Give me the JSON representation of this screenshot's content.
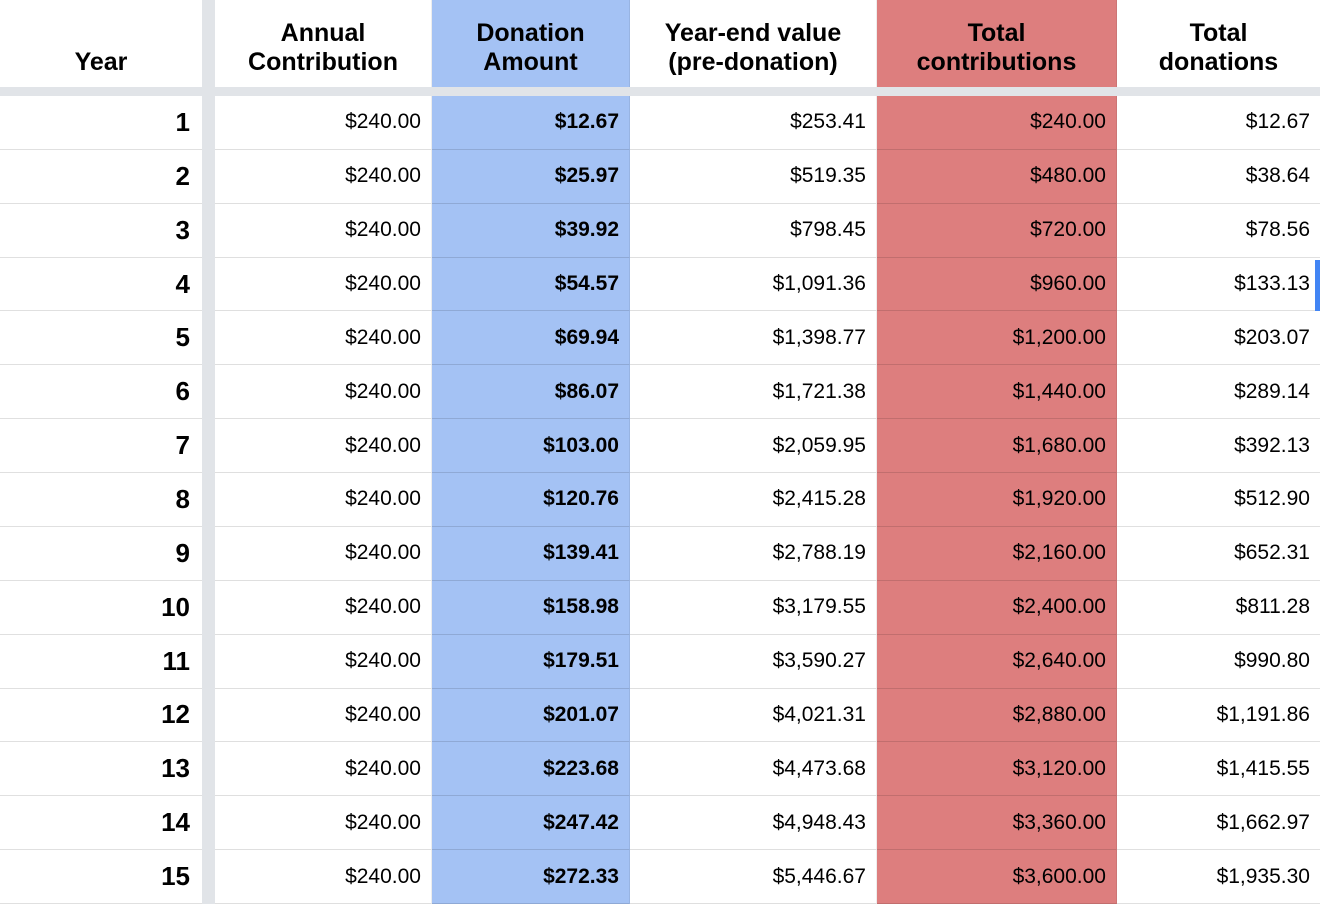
{
  "app": "spreadsheet",
  "colors": {
    "donation_column_fill": "#a4c2f4",
    "contributions_column_fill": "#dd7e7e",
    "freeze_divider": "#e1e4e8",
    "gridline": "#e0e0e0",
    "selection_indicator": "#4285f4"
  },
  "table": {
    "columns": [
      {
        "id": "year",
        "label": "Year",
        "fill": "none"
      },
      {
        "id": "annual_contribution",
        "label": "Annual Contribution",
        "fill": "none"
      },
      {
        "id": "donation_amount",
        "label": "Donation Amount",
        "fill": "blue"
      },
      {
        "id": "year_end_value",
        "label": "Year-end value (pre-donation)",
        "fill": "none"
      },
      {
        "id": "total_contributions",
        "label": "Total contributions",
        "fill": "red"
      },
      {
        "id": "total_donations",
        "label": "Total donations",
        "fill": "none"
      }
    ],
    "rows": [
      {
        "year": "1",
        "annual_contribution": "$240.00",
        "donation_amount": "$12.67",
        "year_end_value": "$253.41",
        "total_contributions": "$240.00",
        "total_donations": "$12.67"
      },
      {
        "year": "2",
        "annual_contribution": "$240.00",
        "donation_amount": "$25.97",
        "year_end_value": "$519.35",
        "total_contributions": "$480.00",
        "total_donations": "$38.64"
      },
      {
        "year": "3",
        "annual_contribution": "$240.00",
        "donation_amount": "$39.92",
        "year_end_value": "$798.45",
        "total_contributions": "$720.00",
        "total_donations": "$78.56"
      },
      {
        "year": "4",
        "annual_contribution": "$240.00",
        "donation_amount": "$54.57",
        "year_end_value": "$1,091.36",
        "total_contributions": "$960.00",
        "total_donations": "$133.13"
      },
      {
        "year": "5",
        "annual_contribution": "$240.00",
        "donation_amount": "$69.94",
        "year_end_value": "$1,398.77",
        "total_contributions": "$1,200.00",
        "total_donations": "$203.07"
      },
      {
        "year": "6",
        "annual_contribution": "$240.00",
        "donation_amount": "$86.07",
        "year_end_value": "$1,721.38",
        "total_contributions": "$1,440.00",
        "total_donations": "$289.14"
      },
      {
        "year": "7",
        "annual_contribution": "$240.00",
        "donation_amount": "$103.00",
        "year_end_value": "$2,059.95",
        "total_contributions": "$1,680.00",
        "total_donations": "$392.13"
      },
      {
        "year": "8",
        "annual_contribution": "$240.00",
        "donation_amount": "$120.76",
        "year_end_value": "$2,415.28",
        "total_contributions": "$1,920.00",
        "total_donations": "$512.90"
      },
      {
        "year": "9",
        "annual_contribution": "$240.00",
        "donation_amount": "$139.41",
        "year_end_value": "$2,788.19",
        "total_contributions": "$2,160.00",
        "total_donations": "$652.31"
      },
      {
        "year": "10",
        "annual_contribution": "$240.00",
        "donation_amount": "$158.98",
        "year_end_value": "$3,179.55",
        "total_contributions": "$2,400.00",
        "total_donations": "$811.28"
      },
      {
        "year": "11",
        "annual_contribution": "$240.00",
        "donation_amount": "$179.51",
        "year_end_value": "$3,590.27",
        "total_contributions": "$2,640.00",
        "total_donations": "$990.80"
      },
      {
        "year": "12",
        "annual_contribution": "$240.00",
        "donation_amount": "$201.07",
        "year_end_value": "$4,021.31",
        "total_contributions": "$2,880.00",
        "total_donations": "$1,191.86"
      },
      {
        "year": "13",
        "annual_contribution": "$240.00",
        "donation_amount": "$223.68",
        "year_end_value": "$4,473.68",
        "total_contributions": "$3,120.00",
        "total_donations": "$1,415.55"
      },
      {
        "year": "14",
        "annual_contribution": "$240.00",
        "donation_amount": "$247.42",
        "year_end_value": "$4,948.43",
        "total_contributions": "$3,360.00",
        "total_donations": "$1,662.97"
      },
      {
        "year": "15",
        "annual_contribution": "$240.00",
        "donation_amount": "$272.33",
        "year_end_value": "$5,446.67",
        "total_contributions": "$3,600.00",
        "total_donations": "$1,935.30"
      }
    ]
  }
}
